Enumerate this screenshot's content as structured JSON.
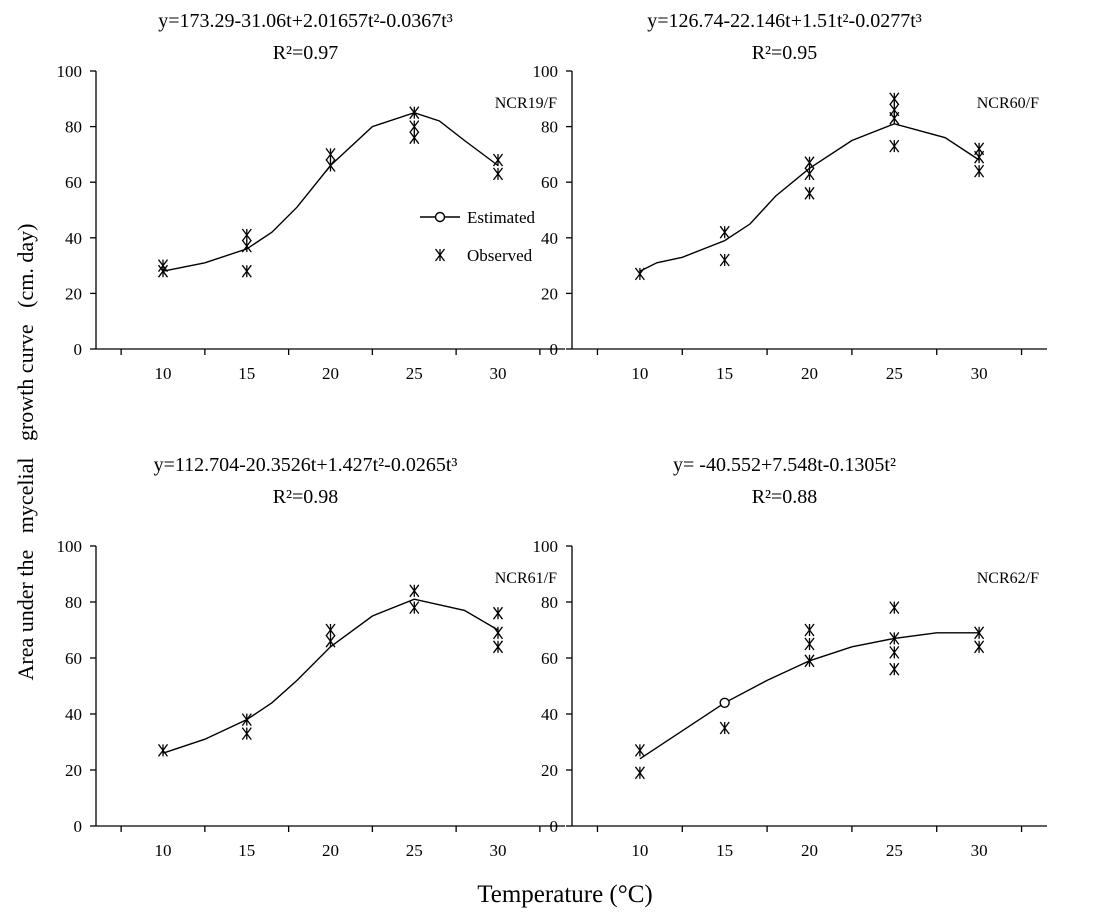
{
  "figure": {
    "ylabel": "Area under the   mycelial   growth curve   (cm. day)",
    "xlabel": "Temperature (°C)"
  },
  "legend": {
    "estimated": "Estimated",
    "observed": "Observed"
  },
  "chart_data": [
    {
      "type": "line",
      "isolate": "NCR19/F",
      "equation": "y=173.29-31.06t+2.01657t²-0.0367t³",
      "r2": "R²=0.97",
      "x_ticks": [
        10,
        15,
        20,
        25,
        30
      ],
      "y_ticks": [
        0,
        20,
        40,
        60,
        80,
        100
      ],
      "xlim": [
        6,
        34
      ],
      "ylim": [
        0,
        100
      ],
      "estimated": {
        "name": "Estimated",
        "x": [
          10,
          12.5,
          15,
          16.5,
          18,
          20,
          22.5,
          25,
          26.5,
          28,
          30
        ],
        "y": [
          28,
          31,
          36,
          42,
          51,
          66,
          80,
          85,
          82,
          75,
          66
        ]
      },
      "observed": {
        "name": "Observed",
        "x": [
          10,
          10,
          15,
          15,
          15,
          20,
          20,
          25,
          25,
          25,
          30,
          30
        ],
        "y": [
          28,
          30,
          28,
          37,
          41,
          66,
          70,
          76,
          80,
          85,
          63,
          68
        ]
      }
    },
    {
      "type": "line",
      "isolate": "NCR60/F",
      "equation": "y=126.74-22.146t+1.51t²-0.0277t³",
      "r2": "R²=0.95",
      "x_ticks": [
        10,
        15,
        20,
        25,
        30
      ],
      "y_ticks": [
        0,
        20,
        40,
        60,
        80,
        100
      ],
      "xlim": [
        6,
        34
      ],
      "ylim": [
        0,
        100
      ],
      "estimated": {
        "name": "Estimated",
        "x": [
          10,
          11,
          12.5,
          15,
          16.5,
          18,
          20,
          22.5,
          25,
          28,
          30
        ],
        "y": [
          28,
          31,
          33,
          39,
          45,
          55,
          65,
          75,
          81,
          76,
          68
        ]
      },
      "observed": {
        "name": "Observed",
        "x": [
          10,
          15,
          15,
          20,
          20,
          20,
          25,
          25,
          25,
          25,
          30,
          30,
          30
        ],
        "y": [
          27,
          32,
          42,
          56,
          63,
          67,
          73,
          83,
          86,
          90,
          64,
          69,
          72
        ]
      }
    },
    {
      "type": "line",
      "isolate": "NCR61/F",
      "equation": "y=112.704-20.3526t+1.427t²-0.0265t³",
      "r2": "R²=0.98",
      "x_ticks": [
        10,
        15,
        20,
        25,
        30
      ],
      "y_ticks": [
        0,
        20,
        40,
        60,
        80,
        100
      ],
      "xlim": [
        6,
        34
      ],
      "ylim": [
        0,
        100
      ],
      "estimated": {
        "name": "Estimated",
        "x": [
          10,
          12.5,
          15,
          16.5,
          18,
          20,
          22.5,
          25,
          28,
          30
        ],
        "y": [
          26,
          31,
          38,
          44,
          52,
          64,
          75,
          81,
          77,
          70
        ]
      },
      "observed": {
        "name": "Observed",
        "x": [
          10,
          15,
          15,
          20,
          20,
          25,
          25,
          30,
          30,
          30
        ],
        "y": [
          27,
          33,
          38,
          66,
          70,
          78,
          84,
          64,
          69,
          76
        ]
      }
    },
    {
      "type": "line",
      "isolate": "NCR62/F",
      "equation": "y= -40.552+7.548t-0.1305t²",
      "r2": "R²=0.88",
      "x_ticks": [
        10,
        15,
        20,
        25,
        30
      ],
      "y_ticks": [
        0,
        20,
        40,
        60,
        80,
        100
      ],
      "xlim": [
        6,
        34
      ],
      "ylim": [
        0,
        100
      ],
      "estimated": {
        "name": "Estimated",
        "x": [
          10,
          12.5,
          15,
          17.5,
          20,
          22.5,
          25,
          27.5,
          30
        ],
        "y": [
          24,
          34,
          44,
          52,
          59,
          64,
          67,
          69,
          69
        ]
      },
      "estimated_marker": {
        "x": 15,
        "y": 44
      },
      "observed": {
        "name": "Observed",
        "x": [
          10,
          10,
          15,
          20,
          20,
          20,
          25,
          25,
          25,
          25,
          30,
          30
        ],
        "y": [
          19,
          27,
          35,
          59,
          65,
          70,
          56,
          62,
          67,
          78,
          64,
          69
        ]
      }
    }
  ]
}
